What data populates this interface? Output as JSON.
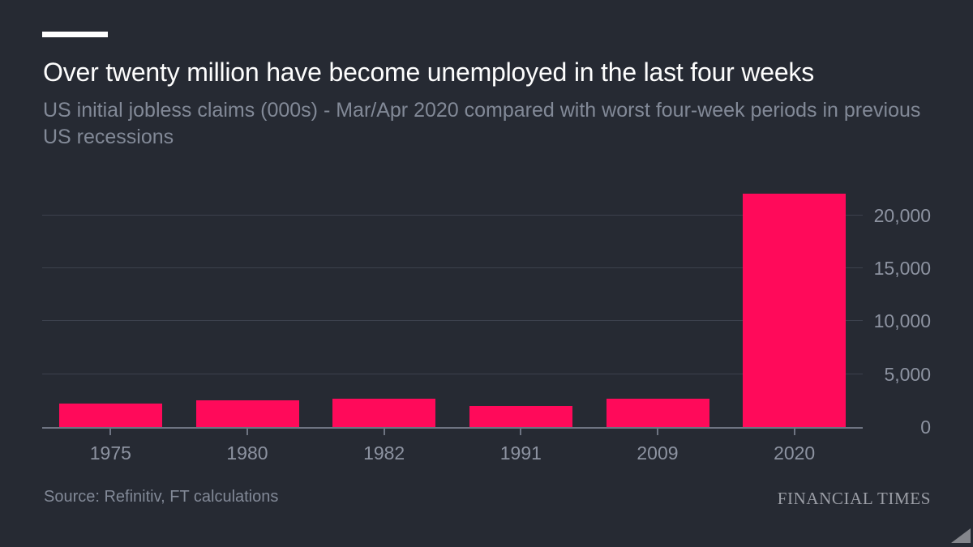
{
  "colors": {
    "background": "#262a33",
    "bar": "#ff0a5a",
    "gridline": "#3c414d",
    "axis": "#6e7482",
    "title_text": "#fdfdfd",
    "muted_text": "#828997",
    "tick_text": "#8d93a1",
    "accent_bar": "#ffffff"
  },
  "chart_data": {
    "type": "bar",
    "title": "Over twenty million have become unemployed in the last four weeks",
    "subtitle": "US initial jobless claims (000s) - Mar/Apr 2020 compared with worst four-week periods in previous US recessions",
    "categories": [
      "1975",
      "1980",
      "1982",
      "1991",
      "2009",
      "2020"
    ],
    "values": [
      2250,
      2500,
      2650,
      2000,
      2650,
      22050
    ],
    "yticks": [
      0,
      5000,
      10000,
      15000,
      20000
    ],
    "ytick_labels": [
      "0",
      "5,000",
      "10,000",
      "15,000",
      "20,000"
    ],
    "ylim": [
      0,
      22800
    ],
    "xlabel": "",
    "ylabel": "",
    "grid": "horizontal",
    "legend": "none",
    "y_axis_side": "right"
  },
  "footer": {
    "source": "Source: Refinitiv, FT calculations",
    "brand": "FINANCIAL TIMES"
  }
}
